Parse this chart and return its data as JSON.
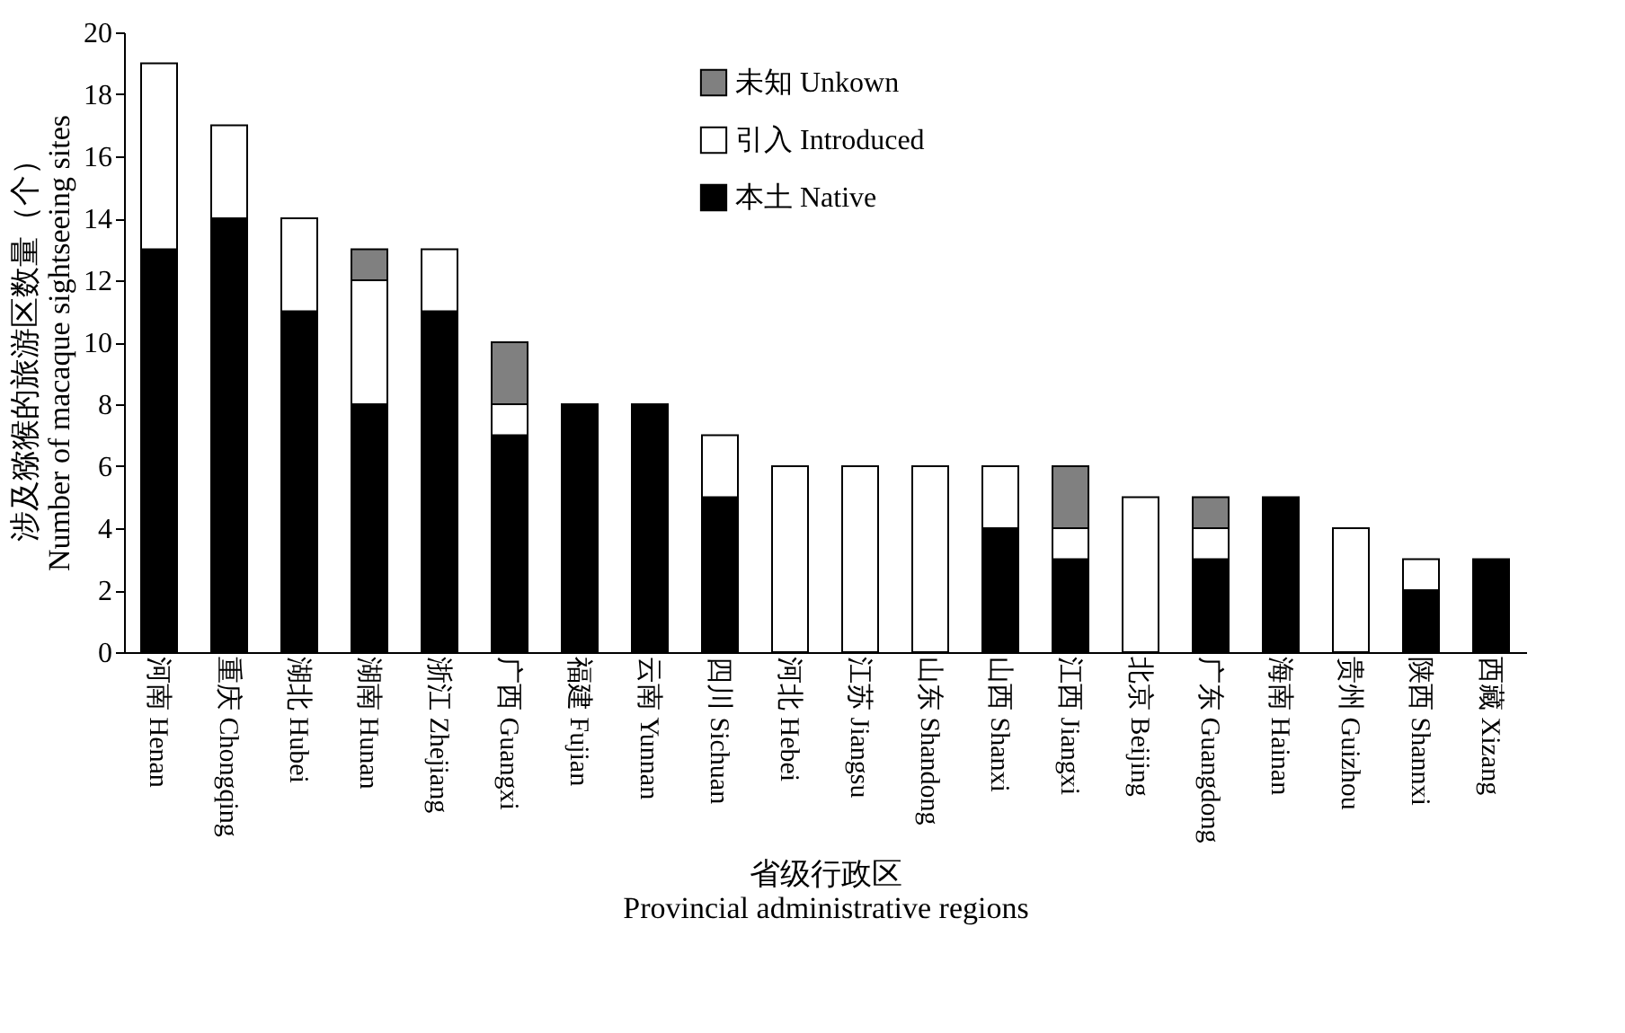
{
  "chart_data": {
    "type": "bar",
    "stacked": true,
    "xlabel": "省级行政区\nProvincial administrative regions",
    "ylabel": "涉及猕猴的旅游区数量（个）\nNumber of macaque sightseeing sites",
    "categories": [
      "河南 Henan",
      "重庆 Chongqing",
      "湖北 Hubei",
      "湖南 Hunan",
      "浙江 Zhejiang",
      "广西 Guangxi",
      "福建 Fujian",
      "云南 Yunnan",
      "四川 Sichuan",
      "河北 Hebei",
      "江苏 Jiangsu",
      "山东 Shandong",
      "山西 Shanxi",
      "江西 Jiangxi",
      "北京 Beijing",
      "广东 Guangdong",
      "海南 Hainan",
      "贵州 Guizhou",
      "陕西 Shannxi",
      "西藏 Xizang"
    ],
    "series": [
      {
        "name": "本土 Native",
        "color": "#000000",
        "values": [
          13,
          14,
          11,
          8,
          11,
          7,
          8,
          8,
          5,
          0,
          0,
          0,
          4,
          3,
          0,
          3,
          5,
          0,
          2,
          3
        ]
      },
      {
        "name": "引入 Introduced",
        "color": "#ffffff",
        "values": [
          6,
          3,
          3,
          4,
          2,
          1,
          0,
          0,
          2,
          6,
          6,
          6,
          2,
          1,
          5,
          1,
          0,
          4,
          1,
          0
        ]
      },
      {
        "name": "未知 Unkown",
        "color": "#808080",
        "values": [
          0,
          0,
          0,
          1,
          0,
          2,
          0,
          0,
          0,
          0,
          0,
          0,
          0,
          2,
          0,
          1,
          0,
          0,
          0,
          0
        ]
      }
    ],
    "ylim": [
      0,
      20
    ],
    "yticks": [
      0,
      2,
      4,
      6,
      8,
      10,
      12,
      14,
      16,
      18,
      20
    ],
    "legend": "top",
    "grid": false
  }
}
